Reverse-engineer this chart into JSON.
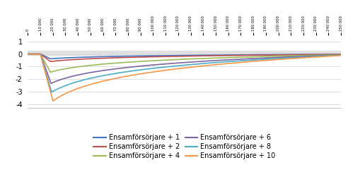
{
  "x_start": 0,
  "x_end": 250000,
  "x_ticks": [
    0,
    10000,
    20000,
    30000,
    40000,
    50000,
    60000,
    70000,
    80000,
    90000,
    100000,
    110000,
    120000,
    130000,
    140000,
    150000,
    160000,
    170000,
    180000,
    190000,
    200000,
    210000,
    220000,
    230000,
    240000,
    250000
  ],
  "ylim": [
    -4.3,
    1.5
  ],
  "yticks": [
    -4,
    -3,
    -2,
    -1,
    0,
    1
  ],
  "gray_band_ymin": -0.08,
  "gray_band_ymax": 0.25,
  "series": [
    {
      "label": "Ensamförsörjare + 1",
      "color": "#4472C4",
      "peak": -0.38,
      "peak_x": 18000,
      "onset_x": 10000
    },
    {
      "label": "Ensamförsörjare + 2",
      "color": "#C0504D",
      "peak": -0.6,
      "peak_x": 18000,
      "onset_x": 10000
    },
    {
      "label": "Ensamförsörjare + 4",
      "color": "#9BBB59",
      "peak": -1.45,
      "peak_x": 18000,
      "onset_x": 10000
    },
    {
      "label": "Ensamförsörjare + 6",
      "color": "#8064A2",
      "peak": -2.35,
      "peak_x": 18500,
      "onset_x": 10000
    },
    {
      "label": "Ensamförsörjare + 8",
      "color": "#4BACC6",
      "peak": -3.05,
      "peak_x": 19000,
      "onset_x": 10000
    },
    {
      "label": "Ensamförsörjare + 10",
      "color": "#F79646",
      "peak": -3.75,
      "peak_x": 20000,
      "onset_x": 10000
    }
  ],
  "background_color": "#ffffff",
  "gridline_color": "#d9d9d9",
  "fontsize_ticks": 7,
  "fontsize_legend": 7,
  "linewidth": 1.2
}
